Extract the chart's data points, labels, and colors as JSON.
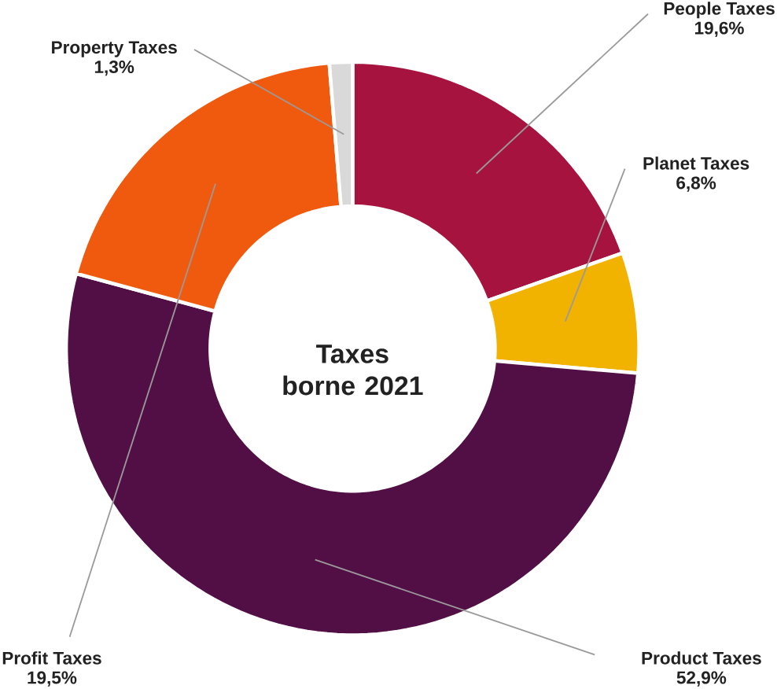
{
  "chart_data": {
    "type": "donut",
    "title": "Taxes borne 2021",
    "categories": [
      "People Taxes",
      "Planet Taxes",
      "Product Taxes",
      "Profit Taxes",
      "Property Taxes"
    ],
    "values": [
      19.6,
      6.8,
      52.9,
      19.5,
      1.3
    ],
    "value_labels": [
      "19,6%",
      "6,8%",
      "52,9%",
      "19,5%",
      "1,3%"
    ],
    "colors": [
      "#a6133f",
      "#f2b200",
      "#520f45",
      "#f05a0e",
      "#d9d9d9"
    ]
  }
}
